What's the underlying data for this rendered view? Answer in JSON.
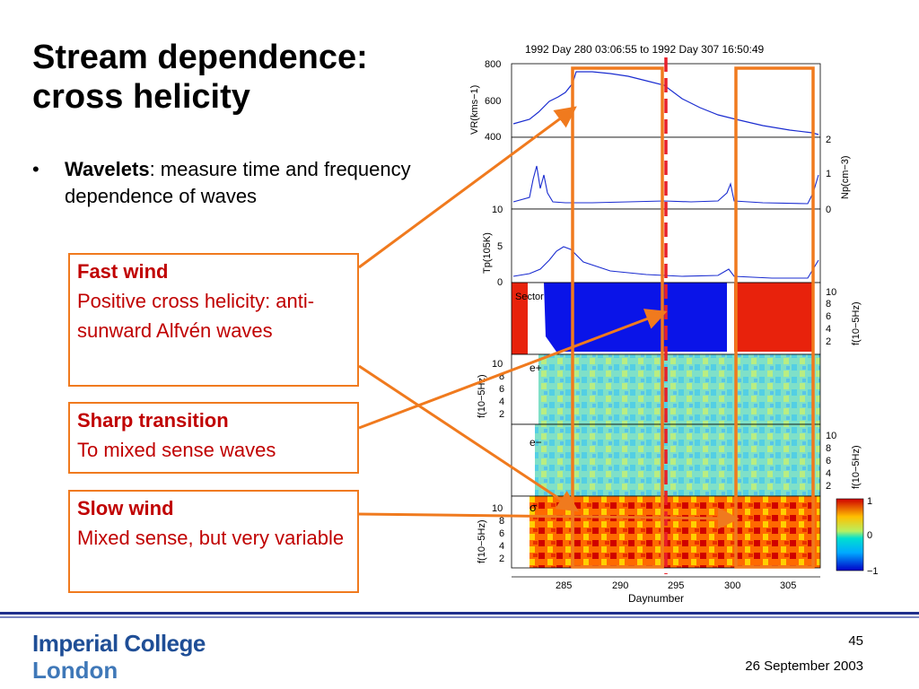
{
  "slide": {
    "title_line1": "Stream dependence:",
    "title_line2": "cross helicity",
    "bullet_marker": "•",
    "bullet_bold": "Wavelets",
    "bullet_rest": ": measure time and frequency dependence of waves"
  },
  "boxes": {
    "fast": {
      "head": "Fast wind",
      "body": "Positive cross helicity: anti-sunward Alfvén waves"
    },
    "sharp": {
      "head": "Sharp transition",
      "body": "To mixed sense waves"
    },
    "slow": {
      "head": "Slow wind",
      "body": "Mixed sense, but very variable"
    }
  },
  "figure": {
    "header": "1992 Day 280 03:06:55 to 1992 Day 307 16:50:49",
    "xlabel": "Daynumber",
    "xticks": [
      "285",
      "290",
      "295",
      "300",
      "305"
    ],
    "vr_label": "VR(kms−1)",
    "vr_ticks": [
      "800",
      "600",
      "400"
    ],
    "np_label": "Np(cm−3)",
    "np_ticks": [
      "2",
      "1",
      "0"
    ],
    "tp_label": "Tp(105K)",
    "tp_ticks": [
      "10",
      "5",
      "0"
    ],
    "freq_label": "f(10−5Hz)",
    "freq_ticks": [
      "10",
      "8",
      "6",
      "4",
      "2"
    ],
    "sector_label": "Sector",
    "eplus_label": "e+",
    "eminus_label": "e−",
    "sigma_label": "σ",
    "colorbar_ticks": [
      "1",
      "0",
      "−1"
    ]
  },
  "colors": {
    "accent": "#f07a1e",
    "box_text": "#c00000",
    "divider": "#e8202a",
    "footer": "#1f2f8c"
  },
  "footer": {
    "logo_line1": "Imperial College",
    "logo_line2": "London",
    "page": "45",
    "date": "26 September 2003"
  }
}
